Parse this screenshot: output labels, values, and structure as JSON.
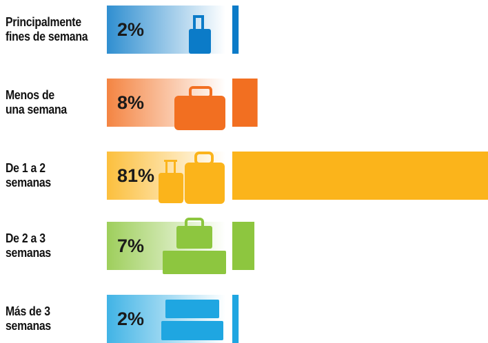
{
  "chart_data": {
    "type": "bar",
    "categories": [
      "Principalmente\nfines de semana",
      "Menos de\nuna semana",
      "De 1 a 2\nsemanas",
      "De 2 a 3\nsemanas",
      "Más de 3\nsemanas"
    ],
    "values": [
      2,
      8,
      81,
      7,
      2
    ],
    "value_labels": [
      "2%",
      "8%",
      "81%",
      "7%",
      "2%"
    ],
    "colors": [
      "#0b7bc8",
      "#f26f21",
      "#fbb41b",
      "#8dc63f",
      "#1fa6e1"
    ]
  }
}
